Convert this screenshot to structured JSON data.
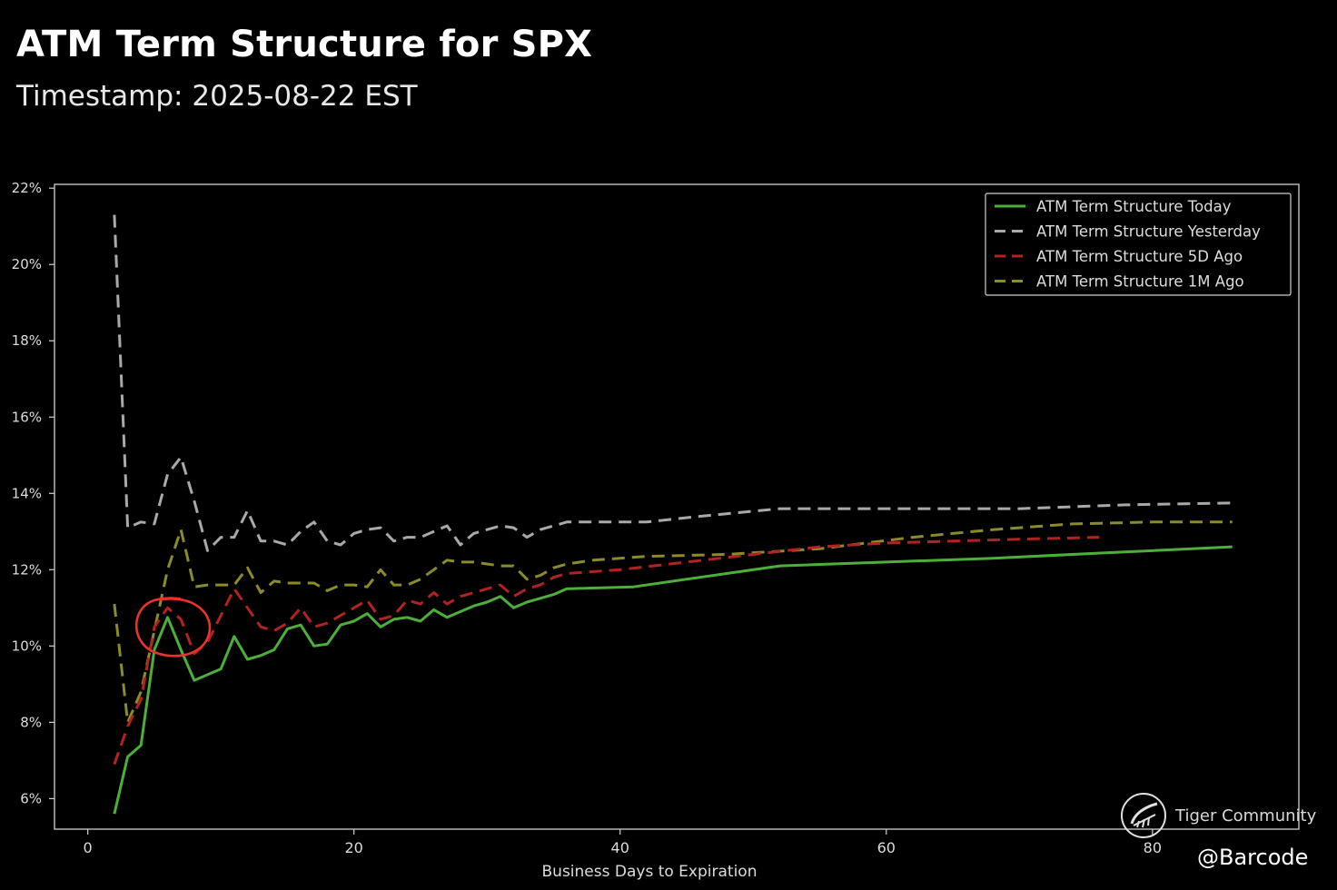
{
  "title": "ATM Term Structure for SPX",
  "subtitle": "Timestamp: 2025-08-22 EST",
  "watermark": "Tiger Community",
  "handle": "@Barcode",
  "chart_data": {
    "type": "line",
    "xlabel": "Business Days to Expiration",
    "ylabel": "",
    "xlim": [
      -2.5,
      91
    ],
    "ylim": [
      5.2,
      22.1
    ],
    "x_ticks": [
      0,
      20,
      40,
      60,
      80
    ],
    "y_ticks": [
      6,
      8,
      10,
      12,
      14,
      16,
      18,
      20,
      22
    ],
    "y_tick_format": "%",
    "grid": false,
    "legend_position": "top-right",
    "annotation": "red hand-drawn circle around the peak near day 6",
    "series": [
      {
        "name": "ATM Term Structure Today",
        "style": "solid",
        "color": "#4caf3a",
        "x": [
          2,
          3,
          4,
          5,
          6,
          7,
          8,
          9,
          10,
          11,
          12,
          13,
          14,
          15,
          16,
          17,
          18,
          19,
          20,
          21,
          22,
          23,
          24,
          25,
          26,
          27,
          28,
          29,
          30,
          31,
          32,
          33,
          34,
          35,
          36,
          41,
          46,
          52,
          60,
          68,
          77,
          86
        ],
        "y": [
          5.6,
          7.1,
          7.4,
          9.9,
          10.75,
          9.9,
          9.1,
          9.25,
          9.4,
          10.25,
          9.65,
          9.75,
          9.9,
          10.45,
          10.55,
          10.0,
          10.05,
          10.55,
          10.65,
          10.85,
          10.5,
          10.7,
          10.75,
          10.65,
          10.95,
          10.75,
          10.9,
          11.05,
          11.15,
          11.3,
          11.0,
          11.15,
          11.25,
          11.35,
          11.5,
          11.55,
          11.8,
          12.1,
          12.2,
          12.3,
          12.45,
          12.6
        ]
      },
      {
        "name": "ATM Term Structure Yesterday",
        "style": "dashed",
        "color": "#a9a9a9",
        "x": [
          2,
          3,
          4,
          5,
          6,
          7,
          8,
          9,
          10,
          11,
          12,
          13,
          14,
          15,
          16,
          17,
          18,
          19,
          20,
          21,
          22,
          23,
          24,
          25,
          26,
          27,
          28,
          29,
          30,
          31,
          32,
          33,
          34,
          35,
          36,
          37,
          38,
          42,
          46,
          52,
          58,
          64,
          70,
          78,
          86
        ],
        "y": [
          21.3,
          13.1,
          13.25,
          13.2,
          14.5,
          14.95,
          13.8,
          12.5,
          12.85,
          12.85,
          13.55,
          12.75,
          12.75,
          12.65,
          13.0,
          13.25,
          12.75,
          12.65,
          12.95,
          13.05,
          13.1,
          12.75,
          12.85,
          12.85,
          13.0,
          13.15,
          12.65,
          12.95,
          13.05,
          13.15,
          13.1,
          12.85,
          13.05,
          13.15,
          13.25,
          13.25,
          13.25,
          13.25,
          13.4,
          13.6,
          13.6,
          13.6,
          13.6,
          13.7,
          13.75
        ]
      },
      {
        "name": "ATM Term Structure 5D Ago",
        "style": "dashed",
        "color": "#b22222",
        "x": [
          2,
          3,
          4,
          5,
          6,
          7,
          8,
          9,
          10,
          11,
          12,
          13,
          14,
          15,
          16,
          17,
          18,
          19,
          20,
          21,
          22,
          23,
          24,
          25,
          26,
          27,
          28,
          29,
          30,
          31,
          32,
          33,
          34,
          35,
          36,
          40,
          45,
          50,
          55,
          60,
          65,
          70,
          76
        ],
        "y": [
          6.9,
          7.9,
          8.6,
          10.5,
          11.0,
          10.7,
          9.8,
          10.1,
          10.8,
          11.5,
          11.0,
          10.5,
          10.4,
          10.6,
          11.0,
          10.5,
          10.6,
          10.8,
          11.0,
          11.2,
          10.7,
          10.8,
          11.2,
          11.1,
          11.4,
          11.1,
          11.3,
          11.4,
          11.5,
          11.6,
          11.3,
          11.5,
          11.6,
          11.8,
          11.9,
          12.0,
          12.2,
          12.4,
          12.6,
          12.7,
          12.75,
          12.8,
          12.85
        ]
      },
      {
        "name": "ATM Term Structure 1M Ago",
        "style": "dashed",
        "color": "#8b8b2a",
        "x": [
          2,
          3,
          4,
          5,
          6,
          7,
          8,
          9,
          10,
          11,
          12,
          13,
          14,
          15,
          16,
          17,
          18,
          19,
          20,
          21,
          22,
          23,
          24,
          25,
          26,
          27,
          28,
          29,
          30,
          31,
          32,
          33,
          34,
          35,
          36,
          37,
          38,
          42,
          48,
          55,
          62,
          68,
          74,
          80,
          86
        ],
        "y": [
          11.1,
          8.0,
          8.8,
          10.4,
          12.0,
          13.05,
          11.55,
          11.6,
          11.6,
          11.6,
          12.05,
          11.4,
          11.7,
          11.65,
          11.65,
          11.65,
          11.45,
          11.6,
          11.6,
          11.55,
          12.0,
          11.6,
          11.6,
          11.75,
          12.0,
          12.25,
          12.2,
          12.2,
          12.15,
          12.1,
          12.1,
          11.75,
          11.85,
          12.05,
          12.15,
          12.2,
          12.25,
          12.35,
          12.4,
          12.55,
          12.85,
          13.05,
          13.2,
          13.25,
          13.25
        ]
      }
    ]
  }
}
